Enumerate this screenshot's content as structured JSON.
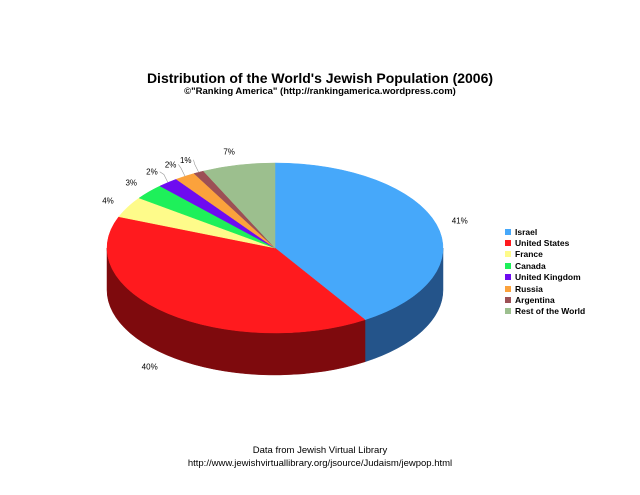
{
  "header": {
    "title": "Distribution of the World's Jewish Population (2006)",
    "subtitle": "©\"Ranking America\" (http://rankingamerica.wordpress.com)"
  },
  "footer": {
    "line1": "Data from Jewish Virtual Library",
    "line2": "http://www.jewishvirtuallibrary.org/jsource/Judaism/jewpop.html"
  },
  "chart_data": {
    "type": "pie",
    "style": "3d",
    "title": "Distribution of the World's Jewish Population (2006)",
    "subtitle": "©\"Ranking America\" (http://rankingamerica.wordpress.com)",
    "legend_position": "right",
    "slices": [
      {
        "label": "Israel",
        "value": 41,
        "display": "41%",
        "color": "#46a8fa",
        "side_color": "#24548a"
      },
      {
        "label": "United States",
        "value": 40,
        "display": "40%",
        "color": "#ff1a1e",
        "side_color": "#7e0a0d"
      },
      {
        "label": "France",
        "value": 4,
        "display": "4%",
        "color": "#fefb8a",
        "side_color": "#9a9656"
      },
      {
        "label": "Canada",
        "value": 3,
        "display": "3%",
        "color": "#1ef05a",
        "side_color": "#0e7a2c"
      },
      {
        "label": "United Kingdom",
        "value": 2,
        "display": "2%",
        "color": "#6e0bf0",
        "side_color": "#3a0680"
      },
      {
        "label": "Russia",
        "value": 2,
        "display": "2%",
        "color": "#fba23c",
        "side_color": "#8c5520"
      },
      {
        "label": "Argentina",
        "value": 1,
        "display": "1%",
        "color": "#9c5055",
        "side_color": "#52292c"
      },
      {
        "label": "Rest of the World",
        "value": 7,
        "display": "7%",
        "color": "#9cbf8e",
        "side_color": "#566b4e"
      }
    ]
  }
}
